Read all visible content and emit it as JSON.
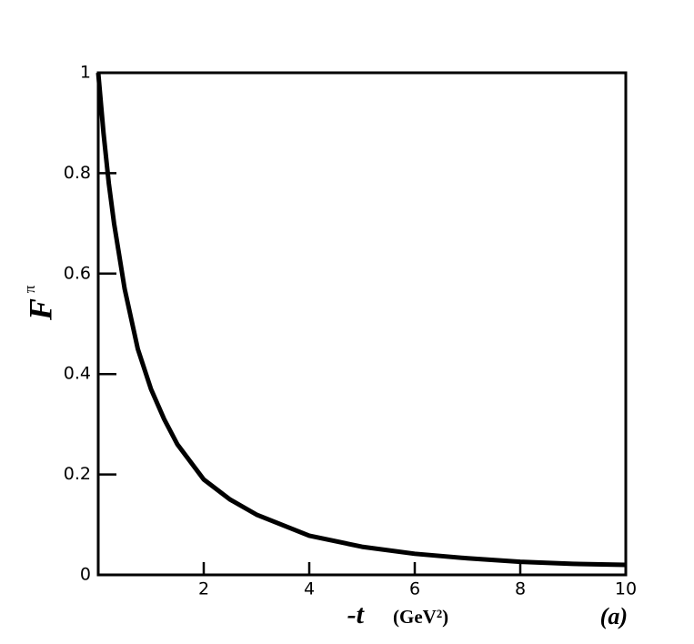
{
  "chart_data": {
    "type": "line",
    "x": [
      0,
      0.1,
      0.2,
      0.3,
      0.5,
      0.75,
      1,
      1.25,
      1.5,
      2,
      2.5,
      3,
      4,
      5,
      6,
      7,
      8,
      9,
      10
    ],
    "series": [
      {
        "color": "#000000",
        "values": [
          1,
          0.88,
          0.78,
          0.7,
          0.57,
          0.45,
          0.37,
          0.31,
          0.26,
          0.19,
          0.15,
          0.12,
          0.078,
          0.056,
          0.042,
          0.033,
          0.026,
          0.022,
          0.02
        ]
      }
    ],
    "xlim": [
      0,
      10
    ],
    "xticks": [
      2,
      4,
      6,
      8,
      10
    ],
    "ylim": [
      0,
      1
    ],
    "yticks": [
      0,
      0.2,
      0.4,
      0.6,
      0.8,
      1
    ],
    "x_label": "-t",
    "x_label_unit": "(GeV²)",
    "y_label": "F",
    "y_label_sup": "π",
    "annotation": "(a)"
  }
}
